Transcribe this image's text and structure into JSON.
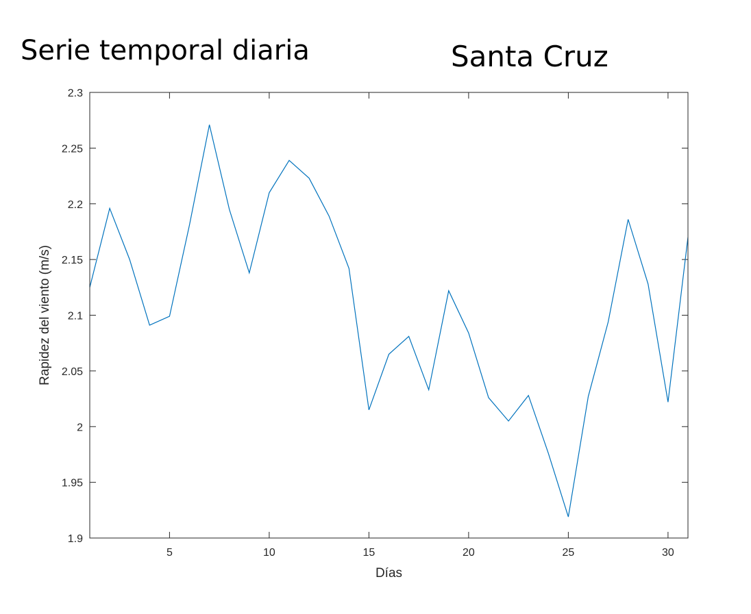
{
  "header": {
    "left_title": "Serie temporal diaria",
    "right_title": "Santa Cruz"
  },
  "chart_data": {
    "type": "line",
    "xlabel": "Días",
    "ylabel": "Rapidez del viento (m/s)",
    "xlim": [
      1,
      31
    ],
    "ylim": [
      1.9,
      2.3
    ],
    "x_ticks": [
      5,
      10,
      15,
      20,
      25,
      30
    ],
    "y_ticks": [
      1.9,
      1.95,
      2,
      2.05,
      2.1,
      2.15,
      2.2,
      2.25,
      2.3
    ],
    "x_tick_labels": [
      "5",
      "10",
      "15",
      "20",
      "25",
      "30"
    ],
    "y_tick_labels": [
      "1.9",
      "1.95",
      "2",
      "2.05",
      "2.1",
      "2.15",
      "2.2",
      "2.25",
      "2.3"
    ],
    "grid": false,
    "line_color": "#0072BD",
    "series": [
      {
        "x": [
          1,
          2,
          3,
          4,
          5,
          6,
          7,
          8,
          9,
          10,
          11,
          12,
          13,
          14,
          15,
          16,
          17,
          18,
          19,
          20,
          21,
          22,
          23,
          24,
          25,
          26,
          27,
          28,
          29,
          30,
          31
        ],
        "values": [
          2.125,
          2.196,
          2.15,
          2.091,
          2.099,
          2.181,
          2.271,
          2.195,
          2.138,
          2.21,
          2.239,
          2.223,
          2.189,
          2.142,
          2.015,
          2.065,
          2.081,
          2.033,
          2.122,
          2.084,
          2.026,
          2.005,
          2.028,
          1.976,
          1.919,
          2.027,
          2.094,
          2.186,
          2.128,
          2.022,
          2.17
        ]
      }
    ]
  }
}
